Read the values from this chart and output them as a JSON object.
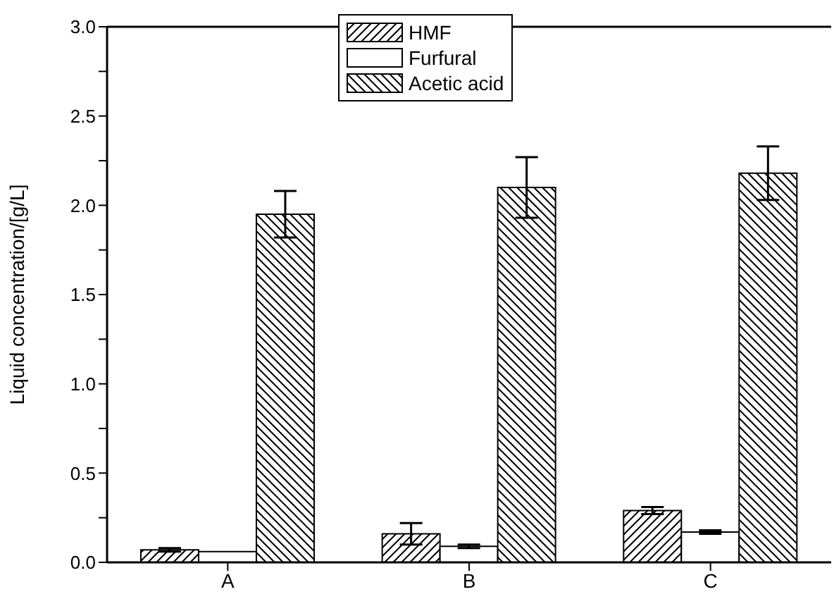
{
  "chart_data": {
    "type": "bar",
    "ylabel": "Liquid concentration/[g/L]",
    "categories": [
      "A",
      "B",
      "C"
    ],
    "series": [
      {
        "name": "HMF",
        "color": "#000000",
        "values": [
          0.07,
          0.16,
          0.29
        ],
        "errors": [
          0.01,
          0.06,
          0.02
        ]
      },
      {
        "name": "Furfural",
        "color": "#ffffff",
        "values": [
          0.06,
          0.09,
          0.17
        ],
        "errors": [
          null,
          0.01,
          0.01
        ]
      },
      {
        "name": "Acetic acid",
        "color": "#000000",
        "values": [
          1.95,
          2.1,
          2.18
        ],
        "errors": [
          0.13,
          0.17,
          0.15
        ]
      }
    ],
    "ylim": [
      0,
      3.0
    ],
    "yticks": [
      {
        "value": 0,
        "label": "0.0"
      },
      {
        "value": 0.25,
        "label": null
      },
      {
        "value": 0.5,
        "label": "0.5"
      },
      {
        "value": 0.75,
        "label": null
      },
      {
        "value": 1,
        "label": "1.0"
      },
      {
        "value": 1.25,
        "label": null
      },
      {
        "value": 1.5,
        "label": "1.5"
      },
      {
        "value": 1.75,
        "label": null
      },
      {
        "value": 2,
        "label": "2.0"
      },
      {
        "value": 2.25,
        "label": null
      },
      {
        "value": 2.5,
        "label": "2.5"
      },
      {
        "value": 2.75,
        "label": null
      },
      {
        "value": 3,
        "label": "3.0"
      }
    ],
    "grid": false,
    "legend": "top"
  }
}
